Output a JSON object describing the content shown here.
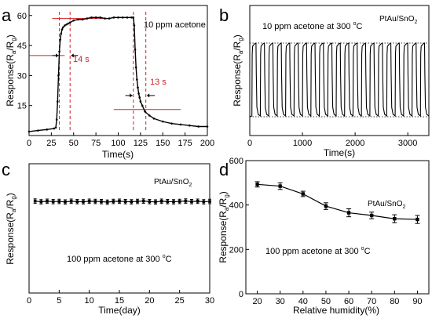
{
  "panels": [
    {
      "letter": "a"
    },
    {
      "letter": "b"
    },
    {
      "letter": "c"
    },
    {
      "letter": "d"
    }
  ],
  "colors": {
    "axis": "#000000",
    "data": "#000000",
    "guide_red": "#d22020",
    "guide_black": "#000000"
  },
  "chart_data": [
    {
      "panel": "a",
      "type": "line",
      "xlabel": "Time(s)",
      "ylabel": "Response(R_a/R_g)",
      "xlim": [
        0,
        200
      ],
      "ylim": [
        0,
        65
      ],
      "xticks": [
        0,
        25,
        50,
        75,
        100,
        125,
        150,
        175,
        200
      ],
      "yticks": [
        15,
        30,
        45,
        60
      ],
      "annotations": [
        "10 ppm acetone",
        "14 s",
        "13 s"
      ],
      "series": [
        {
          "x": [
            0,
            10,
            20,
            28,
            30,
            31,
            32,
            33,
            34,
            35,
            36,
            37,
            38,
            40,
            42,
            44,
            46,
            50,
            55,
            60,
            65,
            70,
            75,
            80,
            85,
            90,
            95,
            100,
            105,
            110,
            115,
            117,
            118,
            119,
            120,
            121,
            122,
            123,
            124,
            125,
            127,
            130,
            135,
            140,
            150,
            160,
            170,
            180,
            190,
            200
          ],
          "y": [
            2,
            2.5,
            3,
            3.5,
            4,
            8,
            17,
            30,
            42,
            48,
            51,
            53,
            54,
            55,
            55.5,
            56,
            56.5,
            57.5,
            58,
            58,
            58.5,
            59,
            59,
            59,
            58.5,
            58.5,
            59,
            59,
            59,
            59,
            59,
            59,
            55,
            43,
            34,
            28,
            24,
            21,
            19,
            17,
            15,
            12,
            10,
            8.5,
            7,
            6,
            5.5,
            5,
            4.5,
            4.5
          ]
        }
      ]
    },
    {
      "panel": "b",
      "type": "line",
      "xlabel": "Time(s)",
      "ylabel": "Response(R_a/R_g)",
      "xlim": [
        0,
        3400
      ],
      "xticks": [
        0,
        1000,
        2000,
        3000
      ],
      "annotations": [
        "10 ppm acetone at 300 °C",
        "PtAu/SnO_2"
      ],
      "cycles": 21,
      "cycle_period_s": 160
    },
    {
      "panel": "c",
      "type": "line",
      "xlabel": "Time(day)",
      "ylabel": "Response(R_a/R_g)",
      "xlim": [
        0,
        30
      ],
      "ylim": [
        0,
        700
      ],
      "xticks": [
        0,
        5,
        10,
        15,
        20,
        25,
        30
      ],
      "annotations": [
        "PtAu/SnO_2",
        "100 ppm acetone at 300 °C"
      ],
      "series": [
        {
          "x": [
            1,
            2,
            3,
            4,
            5,
            6,
            7,
            8,
            9,
            10,
            11,
            12,
            13,
            14,
            15,
            16,
            17,
            18,
            19,
            20,
            21,
            22,
            23,
            24,
            25,
            26,
            27,
            28,
            29,
            30
          ],
          "y": [
            498,
            494,
            497,
            495,
            496,
            493,
            497,
            495,
            494,
            497,
            496,
            495,
            492,
            496,
            497,
            495,
            494,
            496,
            498,
            495,
            493,
            497,
            495,
            494,
            496,
            498,
            495,
            497,
            494,
            496
          ],
          "error": 12
        }
      ]
    },
    {
      "panel": "d",
      "type": "line",
      "xlabel": "Relative humidity(%)",
      "ylabel": "Response(R_a/R_g)",
      "xlim": [
        15,
        95
      ],
      "ylim": [
        0,
        600
      ],
      "xticks": [
        20,
        30,
        40,
        50,
        60,
        70,
        80,
        90
      ],
      "yticks": [
        0,
        200,
        400,
        600
      ],
      "annotations": [
        "PtAu/SnO_2",
        "100 ppm acetone at 300 °C"
      ],
      "series": [
        {
          "x": [
            20,
            30,
            40,
            50,
            60,
            70,
            80,
            90
          ],
          "y": [
            493,
            485,
            450,
            395,
            365,
            353,
            338,
            335
          ],
          "error": [
            12,
            15,
            12,
            15,
            18,
            15,
            18,
            18
          ]
        }
      ]
    }
  ]
}
